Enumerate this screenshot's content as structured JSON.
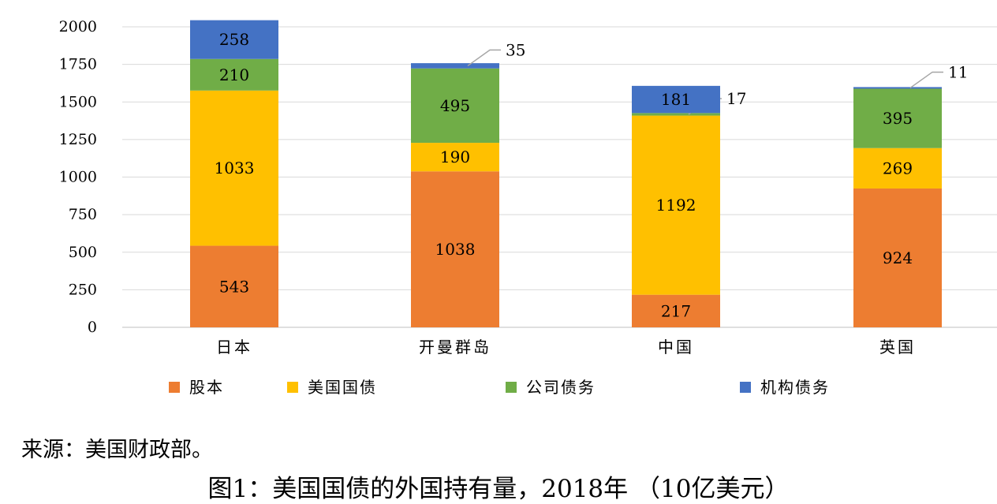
{
  "chart_data": {
    "type": "bar",
    "stacked": true,
    "title": "图1：美国国债的外国持有量，2018年 （10亿美元）",
    "source": "来源：美国财政部。",
    "categories": [
      "日本",
      "开曼群岛",
      "中国",
      "英国"
    ],
    "ylim": [
      0,
      2000
    ],
    "yticks": [
      0,
      250,
      500,
      750,
      1000,
      1250,
      1500,
      1750,
      2000
    ],
    "grid": true,
    "legend_position": "bottom",
    "series": [
      {
        "name": "股本",
        "color": "#ED7D31",
        "values": [
          543,
          1038,
          217,
          924
        ]
      },
      {
        "name": "美国国债",
        "color": "#FFC000",
        "values": [
          1033,
          190,
          1192,
          269
        ]
      },
      {
        "name": "公司债务",
        "color": "#70AD47",
        "values": [
          210,
          495,
          17,
          395
        ]
      },
      {
        "name": "机构债务",
        "color": "#4472C4",
        "values": [
          258,
          35,
          181,
          11
        ]
      }
    ]
  }
}
